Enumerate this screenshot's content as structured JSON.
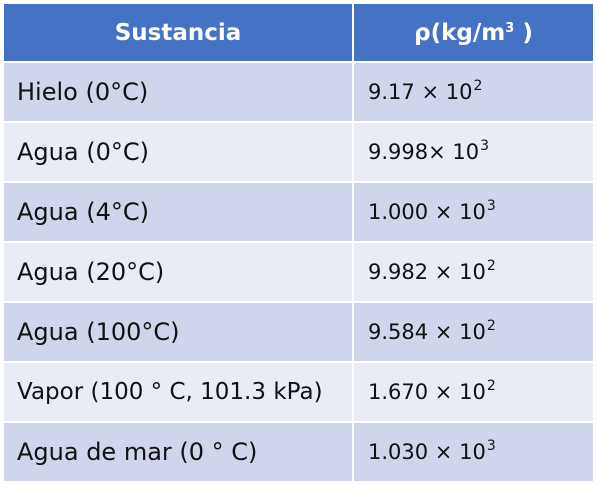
{
  "header": {
    "substance": "Sustancia",
    "density_prefix": "ρ(kg/m",
    "density_exp": "3",
    "density_suffix": " )"
  },
  "rows": [
    {
      "substance": "Hielo (0°C)",
      "mantissa": "9.17",
      "times": " × ",
      "base": "10",
      "exp": "2"
    },
    {
      "substance": "Agua (0°C)",
      "mantissa": "9.998",
      "times": "× ",
      "base": "10",
      "exp": "3"
    },
    {
      "substance": "Agua (4°C)",
      "mantissa": "1.000",
      "times": " × ",
      "base": "10",
      "exp": "3"
    },
    {
      "substance": "Agua (20°C)",
      "mantissa": "9.982",
      "times": " × ",
      "base": "10",
      "exp": "2"
    },
    {
      "substance": "Agua (100°C)",
      "mantissa": "9.584",
      "times": " × ",
      "base": "10",
      "exp": "2"
    },
    {
      "substance": "Vapor (100 ° C, 101.3 kPa)",
      "mantissa": "1.670",
      "times": " × ",
      "base": "10",
      "exp": "2"
    },
    {
      "substance": "Agua de mar (0 ° C)",
      "mantissa": "1.030",
      "times": " × ",
      "base": "10",
      "exp": "3"
    }
  ],
  "colors": {
    "header_bg": "#4472c4",
    "row_dark": "#cfd5ea",
    "row_light": "#e9ebf5"
  }
}
